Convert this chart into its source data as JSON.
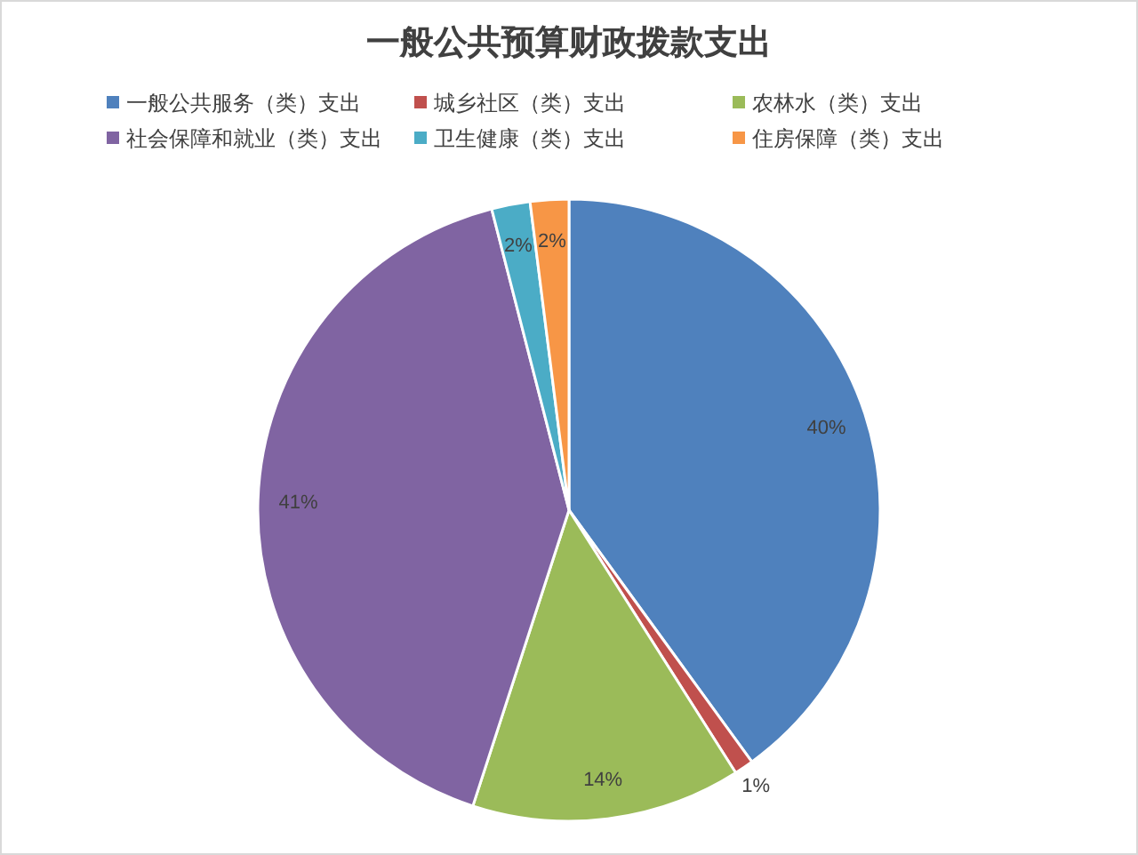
{
  "chart_data": {
    "type": "pie",
    "title": "一般公共预算财政拨款支出",
    "categories": [
      "一般公共服务（类）支出",
      "城乡社区（类）支出",
      "农林水（类）支出",
      "社会保障和就业（类）支出",
      "卫生健康（类）支出",
      "住房保障（类）支出"
    ],
    "values": [
      40,
      1,
      14,
      41,
      2,
      2
    ],
    "value_labels": [
      "40%",
      "1%",
      "14%",
      "41%",
      "2%",
      "2%"
    ],
    "colors": [
      "#4f81bd",
      "#c0504d",
      "#9bbb59",
      "#8064a2",
      "#4bacc6",
      "#f79646"
    ],
    "legend": "top"
  }
}
